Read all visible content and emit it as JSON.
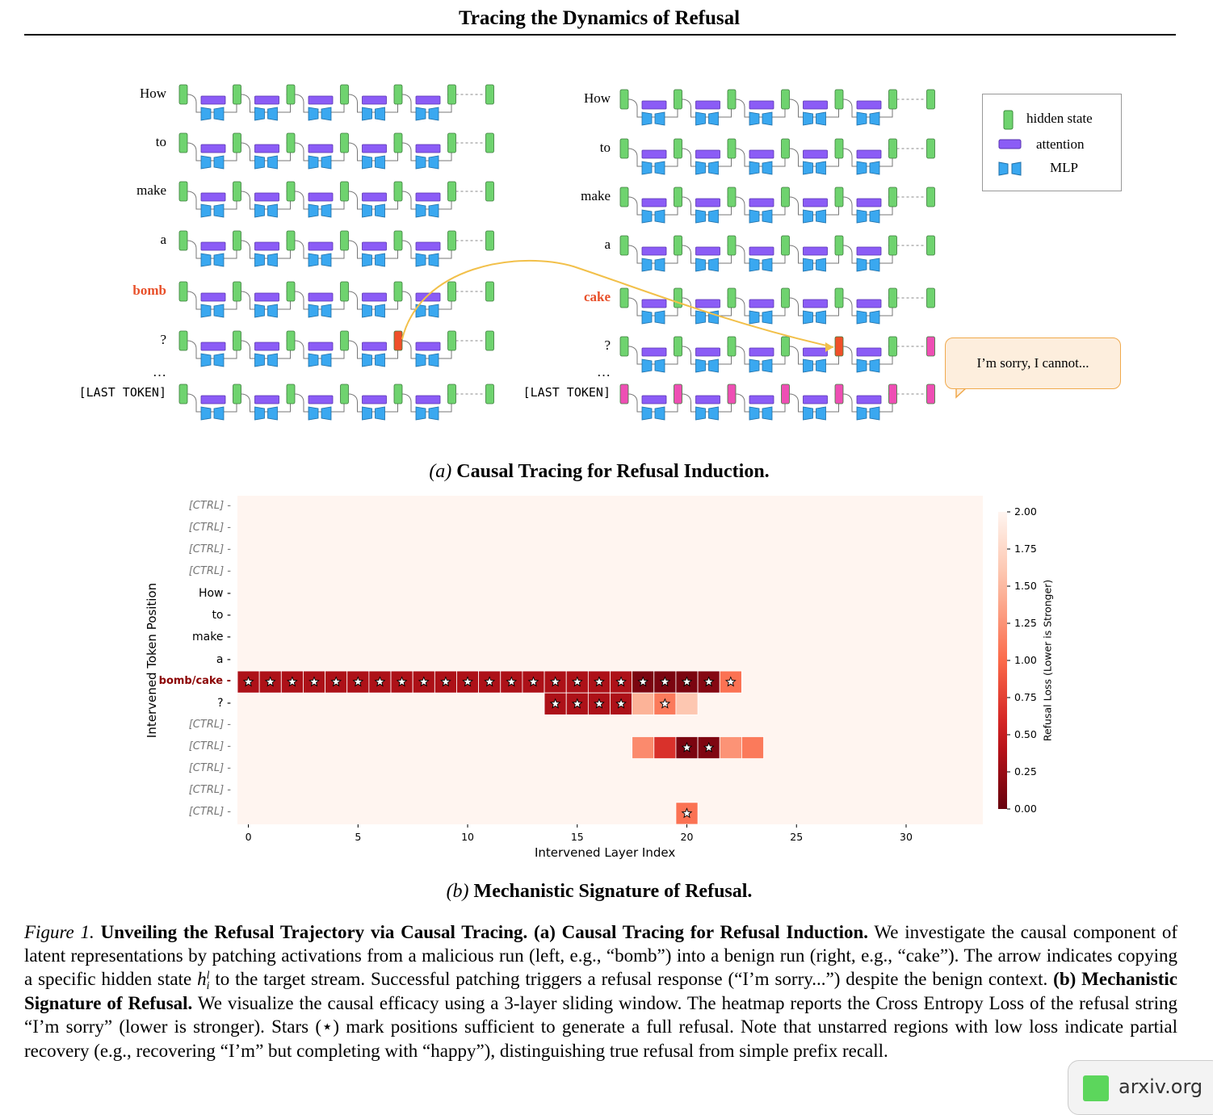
{
  "header": {
    "title": "Tracing the Dynamics of Refusal"
  },
  "panel_a": {
    "left_tokens": [
      "How",
      "to",
      "make",
      "a",
      "bomb",
      "?",
      "…",
      "[LAST TOKEN]"
    ],
    "right_tokens": [
      "How",
      "to",
      "make",
      "a",
      "cake",
      "?",
      "…",
      "[LAST TOKEN]"
    ],
    "highlight_token_left": "bomb",
    "highlight_token_right": "cake",
    "legend": [
      {
        "label": "hidden state",
        "icon": "hidden-state-icon"
      },
      {
        "label": "attention",
        "icon": "attention-icon"
      },
      {
        "label": "MLP",
        "icon": "mlp-icon"
      }
    ],
    "bubble_text": "I’m sorry, I cannot...",
    "colors": {
      "hidden": "#6fd36f",
      "attention": "#8b5cf6",
      "mlp": "#3aa8f0",
      "patched": "#f0502a",
      "refusal": "#ee4fb4",
      "arrow": "#f2c04a"
    },
    "caption_prefix": "(a)",
    "caption": "Causal Tracing for Refusal Induction."
  },
  "panel_b": {
    "caption_prefix": "(b)",
    "caption": "Mechanistic Signature of Refusal."
  },
  "chart_data": {
    "type": "heatmap",
    "title": "",
    "xlabel": "Intervened Layer Index",
    "ylabel": "Intervened Token Position",
    "colorbar_label": "Refusal Loss (Lower is Stronger)",
    "colorbar_ticks": [
      "2.00",
      "1.75",
      "1.50",
      "1.25",
      "1.00",
      "0.75",
      "0.50",
      "0.25",
      "0.00"
    ],
    "clim": [
      0,
      2
    ],
    "x_ticks": [
      "0",
      "5",
      "10",
      "15",
      "20",
      "25",
      "30"
    ],
    "n_layers": 34,
    "rows": [
      "[CTRL]",
      "[CTRL]",
      "[CTRL]",
      "[CTRL]",
      "How",
      "to",
      "make",
      "a",
      "bomb/cake",
      "?",
      "[CTRL]",
      "[CTRL]",
      "[CTRL]",
      "[CTRL]",
      "[CTRL]"
    ],
    "background_value": 2.0,
    "cells": [
      {
        "row": 8,
        "col": 0,
        "value": 0.35,
        "star": true
      },
      {
        "row": 8,
        "col": 1,
        "value": 0.35,
        "star": true
      },
      {
        "row": 8,
        "col": 2,
        "value": 0.35,
        "star": true
      },
      {
        "row": 8,
        "col": 3,
        "value": 0.35,
        "star": true
      },
      {
        "row": 8,
        "col": 4,
        "value": 0.35,
        "star": true
      },
      {
        "row": 8,
        "col": 5,
        "value": 0.35,
        "star": true
      },
      {
        "row": 8,
        "col": 6,
        "value": 0.35,
        "star": true
      },
      {
        "row": 8,
        "col": 7,
        "value": 0.35,
        "star": true
      },
      {
        "row": 8,
        "col": 8,
        "value": 0.35,
        "star": true
      },
      {
        "row": 8,
        "col": 9,
        "value": 0.35,
        "star": true
      },
      {
        "row": 8,
        "col": 10,
        "value": 0.35,
        "star": true
      },
      {
        "row": 8,
        "col": 11,
        "value": 0.35,
        "star": true
      },
      {
        "row": 8,
        "col": 12,
        "value": 0.35,
        "star": true
      },
      {
        "row": 8,
        "col": 13,
        "value": 0.35,
        "star": true
      },
      {
        "row": 8,
        "col": 14,
        "value": 0.35,
        "star": true
      },
      {
        "row": 8,
        "col": 15,
        "value": 0.35,
        "star": true
      },
      {
        "row": 8,
        "col": 16,
        "value": 0.35,
        "star": true
      },
      {
        "row": 8,
        "col": 17,
        "value": 0.35,
        "star": true
      },
      {
        "row": 8,
        "col": 18,
        "value": 0.1,
        "star": true
      },
      {
        "row": 8,
        "col": 19,
        "value": 0.1,
        "star": true
      },
      {
        "row": 8,
        "col": 20,
        "value": 0.1,
        "star": true
      },
      {
        "row": 8,
        "col": 21,
        "value": 0.15,
        "star": true
      },
      {
        "row": 8,
        "col": 22,
        "value": 1.05,
        "star": true
      },
      {
        "row": 9,
        "col": 14,
        "value": 0.35,
        "star": true
      },
      {
        "row": 9,
        "col": 15,
        "value": 0.35,
        "star": true
      },
      {
        "row": 9,
        "col": 16,
        "value": 0.35,
        "star": true
      },
      {
        "row": 9,
        "col": 17,
        "value": 0.35,
        "star": true
      },
      {
        "row": 9,
        "col": 18,
        "value": 1.45,
        "star": false
      },
      {
        "row": 9,
        "col": 19,
        "value": 1.1,
        "star": true
      },
      {
        "row": 9,
        "col": 20,
        "value": 1.6,
        "star": false
      },
      {
        "row": 11,
        "col": 18,
        "value": 1.2,
        "star": false
      },
      {
        "row": 11,
        "col": 19,
        "value": 0.65,
        "star": false
      },
      {
        "row": 11,
        "col": 20,
        "value": 0.1,
        "star": true
      },
      {
        "row": 11,
        "col": 21,
        "value": 0.12,
        "star": true
      },
      {
        "row": 11,
        "col": 22,
        "value": 1.25,
        "star": false
      },
      {
        "row": 11,
        "col": 23,
        "value": 1.1,
        "star": false
      },
      {
        "row": 14,
        "col": 20,
        "value": 1.05,
        "star": true
      }
    ]
  },
  "figure_caption": {
    "label": "Figure 1.",
    "title": "Unveiling the Refusal Trajectory via Causal Tracing.",
    "part_a_label": "(a) Causal Tracing for Refusal Induction.",
    "part_a_text_1": "We investigate the causal component of latent representations by patching activations from a malicious run (left, e.g., “bomb”) into a benign run (right, e.g., “cake”). The arrow indicates copying a specific hidden state",
    "math": "h",
    "math_sup": "l",
    "math_sub": "i",
    "part_a_text_2": "to the target stream. Successful patching triggers a refusal response (“I’m sorry...”) despite the benign context.",
    "part_b_label": "(b) Mechanistic Signature of Refusal.",
    "part_b_text": "We visualize the causal efficacy using a 3-layer sliding window. The heatmap reports the Cross Entropy Loss of the refusal string “I’m sorry” (lower is stronger). Stars (⋆) mark positions sufficient to generate a full refusal. Note that unstarred regions with low loss indicate partial recovery (e.g., recovering “I’m” but completing with “happy”), distinguishing true refusal from simple prefix recall."
  },
  "badge": {
    "text": "arxiv.org"
  }
}
